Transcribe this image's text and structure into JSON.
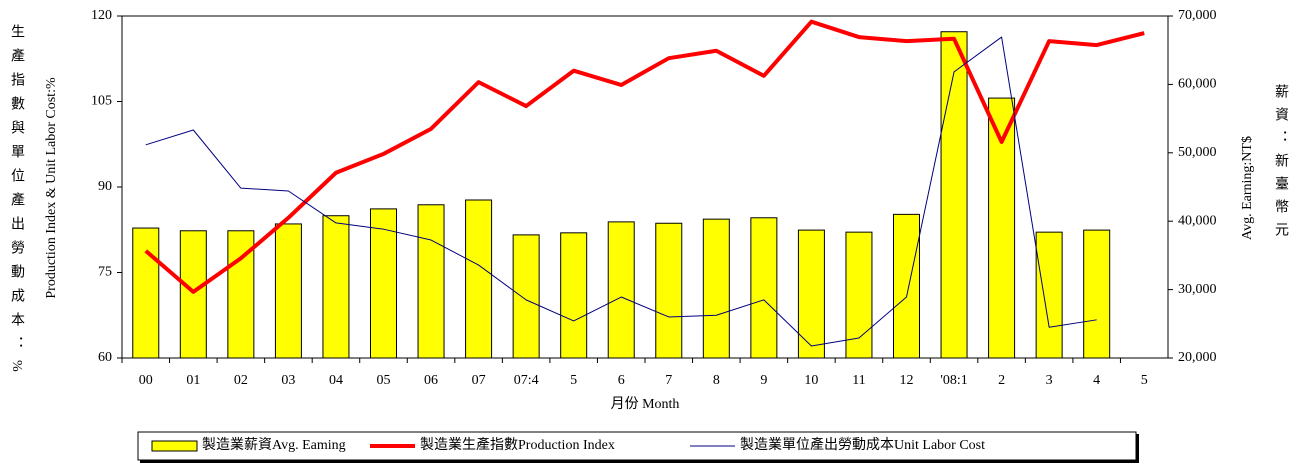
{
  "chart_data": {
    "type": "combo",
    "y_label_zh": "生產指數與單位產出勞動成本：%",
    "y_label": "Production Index & Unit Labor Cost:%",
    "y2_label": "Avg. Earning:NT$",
    "y2_label_zh": "薪資：新臺幣元",
    "x_label": "月份 Month",
    "categories": [
      "00",
      "01",
      "02",
      "03",
      "04",
      "05",
      "06",
      "07",
      "07:4",
      "5",
      "6",
      "7",
      "8",
      "9",
      "10",
      "11",
      "12",
      "'08:1",
      "2",
      "3",
      "4",
      "5"
    ],
    "ylim": [
      60,
      120
    ],
    "yticks": [
      60,
      75,
      90,
      105,
      120
    ],
    "y2lim": [
      20000,
      70000
    ],
    "y2ticks": [
      {
        "value": 20000,
        "label": "20,000"
      },
      {
        "value": 30000,
        "label": "30,000"
      },
      {
        "value": 40000,
        "label": "40,000"
      },
      {
        "value": 50000,
        "label": "50,000"
      },
      {
        "value": 60000,
        "label": "60,000"
      },
      {
        "value": 70000,
        "label": "70,000"
      }
    ],
    "series": [
      {
        "name": "製造業薪資Avg. Eaming",
        "type": "bar",
        "axis": "y2",
        "color": "#ffff00",
        "values": [
          39000,
          38600,
          38600,
          39600,
          40800,
          41800,
          42400,
          43100,
          38000,
          38300,
          39900,
          39700,
          40300,
          40500,
          38700,
          38400,
          41000,
          67700,
          58000,
          38400,
          38700,
          null
        ]
      },
      {
        "name": "製造業生產指數Production Index",
        "type": "line",
        "color": "#ff0000",
        "values": [
          78.8,
          71.6,
          77.5,
          84.6,
          92.5,
          95.8,
          100.2,
          108.4,
          104.2,
          110.4,
          107.9,
          112.6,
          113.9,
          109.5,
          119,
          116.3,
          115.6,
          116,
          97.9,
          115.6,
          114.9,
          117
        ]
      },
      {
        "name": "製造業單位產出勞動成本Unit Labor Cost",
        "type": "line",
        "color": "#000080",
        "values": [
          97.4,
          100,
          89.8,
          89.3,
          83.7,
          82.6,
          80.7,
          76.3,
          70.2,
          66.5,
          70.7,
          67.2,
          67.5,
          70.2,
          62.1,
          63.5,
          70.7,
          110.2,
          116.3,
          65.4,
          66.7,
          null
        ]
      }
    ]
  }
}
